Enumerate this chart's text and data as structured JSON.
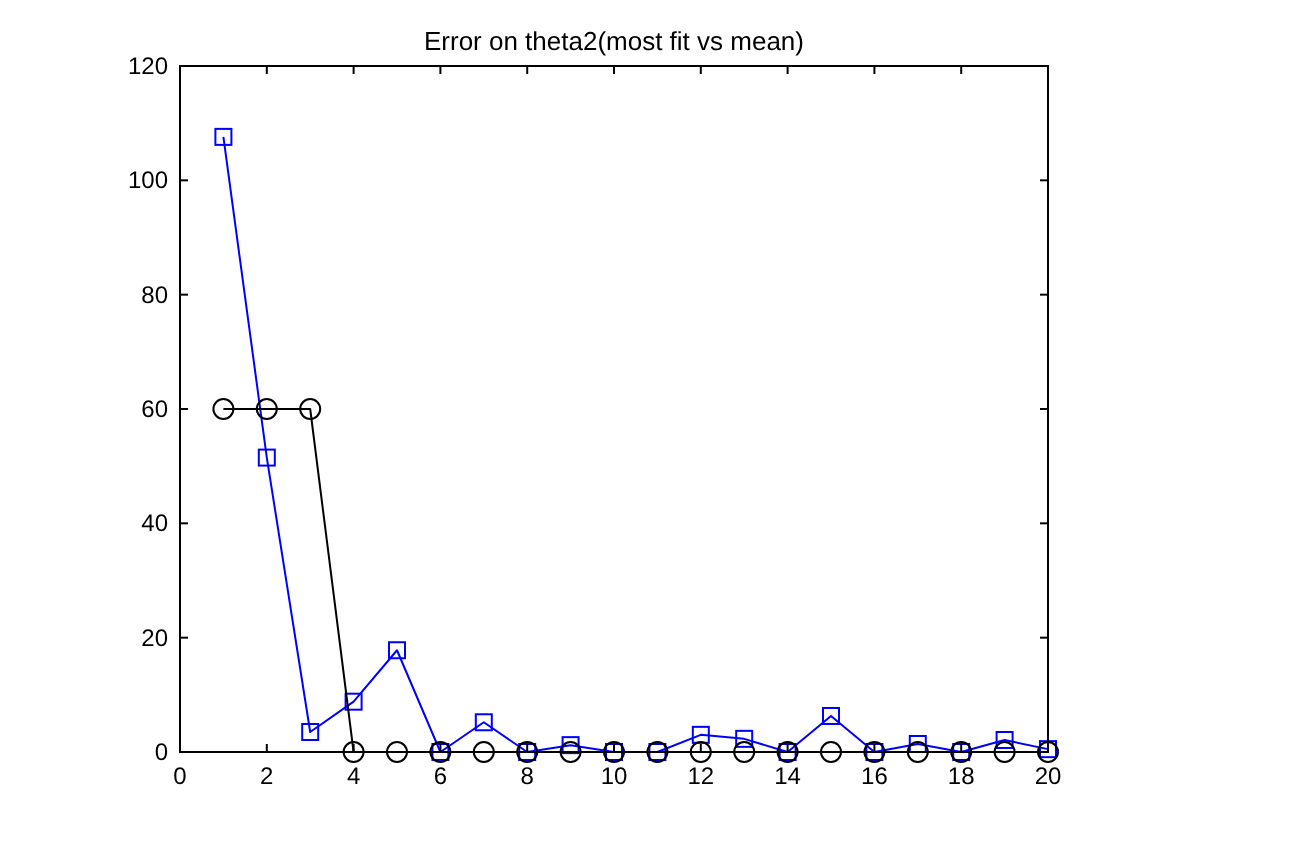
{
  "chart_data": {
    "type": "line",
    "title": "Error on theta2(most fit vs mean)",
    "x": [
      1,
      2,
      3,
      4,
      5,
      6,
      7,
      8,
      9,
      10,
      11,
      12,
      13,
      14,
      15,
      16,
      17,
      18,
      19,
      20
    ],
    "series": [
      {
        "color": "#0000ff",
        "marker": "square",
        "values": [
          107.6,
          51.5,
          3.5,
          8.8,
          17.8,
          0,
          5.2,
          0,
          1.2,
          0,
          0,
          3,
          2.3,
          0,
          6.3,
          0,
          1.4,
          0,
          2.1,
          0.5
        ]
      },
      {
        "color": "#000000",
        "marker": "circle",
        "values": [
          60,
          60,
          60,
          0,
          0,
          0,
          0,
          0,
          0,
          0,
          0,
          0,
          0,
          0,
          0,
          0,
          0,
          0,
          0,
          0
        ]
      }
    ],
    "xlim": [
      0,
      20
    ],
    "xticks": [
      0,
      2,
      4,
      6,
      8,
      10,
      12,
      14,
      16,
      18,
      20
    ],
    "ylim": [
      0,
      120
    ],
    "yticks": [
      0,
      20,
      40,
      60,
      80,
      100,
      120
    ],
    "grid": false
  }
}
